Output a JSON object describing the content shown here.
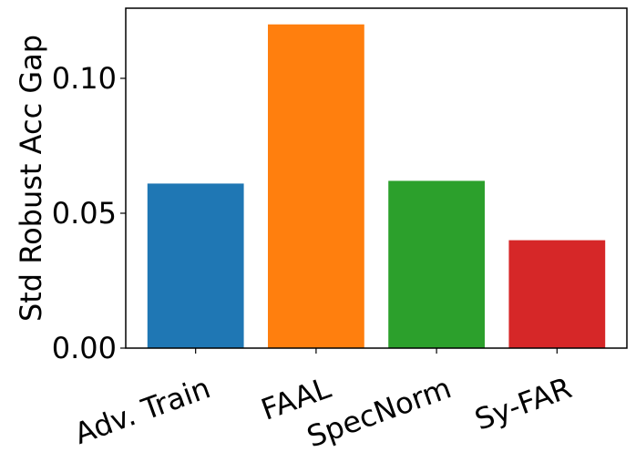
{
  "chart_data": {
    "type": "bar",
    "title": "",
    "xlabel": "",
    "ylabel": "Std Robust Acc Gap",
    "categories": [
      "Adv. Train",
      "FAAL",
      "SpecNorm",
      "Sy-FAR"
    ],
    "values": [
      0.061,
      0.12,
      0.062,
      0.04
    ],
    "colors": [
      "#1f77b4",
      "#ff7f0e",
      "#2ca02c",
      "#d62728"
    ],
    "ylim": [
      0,
      0.126
    ],
    "yticks": [
      0.0,
      0.05,
      0.1
    ],
    "ytick_labels": [
      "0.00",
      "0.05",
      "0.10"
    ],
    "xtick_rotation_deg": -20,
    "grid": false,
    "legend": "none"
  }
}
